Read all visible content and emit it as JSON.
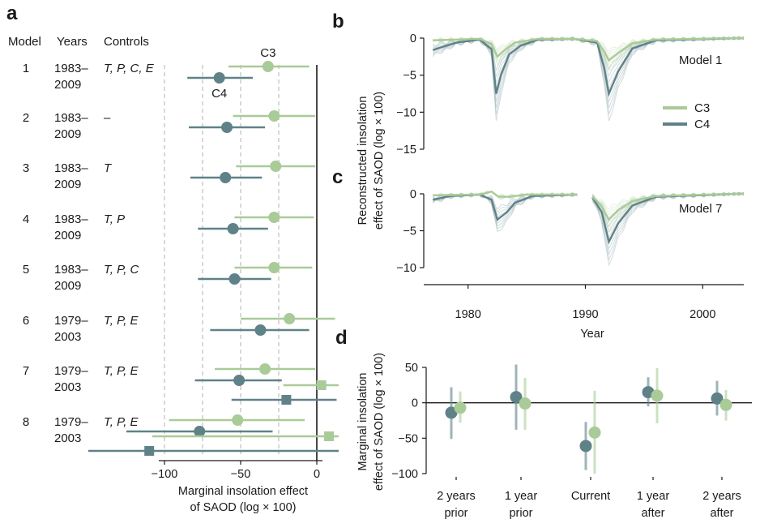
{
  "colors": {
    "c3": "#a9cb97",
    "c4": "#5f8288",
    "axis": "#1a1a1a",
    "dash": "#bdbdbd"
  },
  "chart_data": [
    {
      "panel": "a",
      "type": "forest",
      "headers": {
        "model": "Model",
        "years": "Years",
        "controls": "Controls"
      },
      "series_labels": {
        "c3": "C3",
        "c4": "C4"
      },
      "xlabel_line1": "Marginal insolation effect",
      "xlabel_line2": "of SAOD (log × 100)",
      "xticks": [
        -100,
        -50,
        0
      ],
      "tick_labels": [
        "−100",
        "−50",
        "0"
      ],
      "xlim": [
        -100,
        0
      ],
      "rows": [
        {
          "model": "1",
          "years": [
            "1983–",
            "2009"
          ],
          "controls": "T, P, C, E",
          "c3": {
            "est": -32,
            "lo": -58,
            "hi": -5
          },
          "c4": {
            "est": -64,
            "lo": -85,
            "hi": -42
          }
        },
        {
          "model": "2",
          "years": [
            "1983–",
            "2009"
          ],
          "controls": "–",
          "c3": {
            "est": -28,
            "lo": -55,
            "hi": -1
          },
          "c4": {
            "est": -59,
            "lo": -84,
            "hi": -34
          }
        },
        {
          "model": "3",
          "years": [
            "1983–",
            "2009"
          ],
          "controls": "T",
          "c3": {
            "est": -27,
            "lo": -53,
            "hi": -1
          },
          "c4": {
            "est": -60,
            "lo": -83,
            "hi": -36
          }
        },
        {
          "model": "4",
          "years": [
            "1983–",
            "2009"
          ],
          "controls": "T, P",
          "c3": {
            "est": -28,
            "lo": -54,
            "hi": -2
          },
          "c4": {
            "est": -55,
            "lo": -78,
            "hi": -32
          }
        },
        {
          "model": "5",
          "years": [
            "1983–",
            "2009"
          ],
          "controls": "T, P, C",
          "c3": {
            "est": -28,
            "lo": -54,
            "hi": -3
          },
          "c4": {
            "est": -54,
            "lo": -78,
            "hi": -30
          }
        },
        {
          "model": "6",
          "years": [
            "1979–",
            "2003"
          ],
          "controls": "T, P, E",
          "c3": {
            "est": -18,
            "lo": -50,
            "hi": 12
          },
          "c4": {
            "est": -37,
            "lo": -70,
            "hi": -5
          }
        },
        {
          "model": "7",
          "years": [
            "1979–",
            "2003"
          ],
          "controls": "T, P, E",
          "c3": {
            "est": -34,
            "lo": -67,
            "hi": -1
          },
          "c4": {
            "est": -51,
            "lo": -80,
            "hi": -23
          },
          "c3_sq": {
            "est": 3,
            "lo": -22,
            "hi": 15
          },
          "c4_sq": {
            "est": -20,
            "lo": -56,
            "hi": 13
          }
        },
        {
          "model": "8",
          "years": [
            "1979–",
            "2003"
          ],
          "controls": "T, P, E",
          "c3": {
            "est": -52,
            "lo": -97,
            "hi": -8
          },
          "c4": {
            "est": -77,
            "lo": -125,
            "hi": -29
          },
          "c3_sq": {
            "est": 8,
            "lo": -108,
            "hi": 15
          },
          "c4_sq": {
            "est": -110,
            "lo": -150,
            "hi": 15
          }
        }
      ]
    },
    {
      "panel": "b",
      "type": "line",
      "annotation": "Model 1",
      "ylabel_line1": "Reconstructed insolation",
      "ylabel_line2": "effect of SAOD (log × 100)",
      "yticks": [
        0,
        -5,
        -10,
        -15
      ],
      "ytick_labels": [
        "0",
        "−5",
        "−10",
        "−15"
      ],
      "ylim": [
        -15,
        0
      ],
      "xlim": [
        1976.5,
        2003.5
      ],
      "legend": [
        "C3",
        "C4"
      ],
      "legend_position": "right",
      "c3_mean": [
        [
          1977,
          -0.3
        ],
        [
          1981,
          -0.1
        ],
        [
          1982,
          -0.8
        ],
        [
          1982.5,
          -2.5
        ],
        [
          1983.2,
          -1.5
        ],
        [
          1984,
          -0.6
        ],
        [
          1986,
          -0.1
        ],
        [
          1989,
          -0.1
        ],
        [
          1991,
          -0.4
        ],
        [
          1991.6,
          -1.8
        ],
        [
          1992,
          -3.0
        ],
        [
          1992.8,
          -2.0
        ],
        [
          1994,
          -0.7
        ],
        [
          1996,
          -0.2
        ],
        [
          2003,
          0
        ]
      ],
      "c4_mean": [
        [
          1977,
          -1.6
        ],
        [
          1979,
          -0.6
        ],
        [
          1981,
          -0.2
        ],
        [
          1982,
          -1.5
        ],
        [
          1982.4,
          -7.5
        ],
        [
          1982.8,
          -5.0
        ],
        [
          1983.5,
          -2.2
        ],
        [
          1984.5,
          -1.0
        ],
        [
          1986,
          -0.2
        ],
        [
          1989,
          -0.1
        ],
        [
          1991,
          -0.6
        ],
        [
          1991.6,
          -4.0
        ],
        [
          1992,
          -7.5
        ],
        [
          1992.8,
          -4.5
        ],
        [
          1994,
          -1.4
        ],
        [
          1996,
          -0.3
        ],
        [
          2003,
          0
        ]
      ]
    },
    {
      "panel": "c",
      "type": "line",
      "annotation": "Model 7",
      "yticks": [
        0,
        -5,
        -10
      ],
      "ytick_labels": [
        "0",
        "−5",
        "−10"
      ],
      "ylim": [
        -10,
        0
      ],
      "xlim": [
        1976.5,
        2003.5
      ],
      "xticks": [
        1980,
        1990,
        2000
      ],
      "xtick_labels": [
        "1980",
        "1990",
        "2000"
      ],
      "xlabel": "Year",
      "gap": [
        1989.3,
        1990.5
      ],
      "c3_mean": [
        [
          1977,
          -0.2
        ],
        [
          1981,
          -0.1
        ],
        [
          1982,
          0.3
        ],
        [
          1982.6,
          -0.4
        ],
        [
          1983.5,
          -0.4
        ],
        [
          1985,
          -0.1
        ],
        [
          1989.2,
          -0.1
        ],
        [
          1990.6,
          -0.4
        ],
        [
          1991.3,
          -1.5
        ],
        [
          1992,
          -3.5
        ],
        [
          1992.8,
          -2.2
        ],
        [
          1994,
          -1.0
        ],
        [
          1996,
          -0.3
        ],
        [
          2003,
          0
        ]
      ],
      "c4_mean": [
        [
          1977,
          -0.8
        ],
        [
          1978.5,
          -0.3
        ],
        [
          1981,
          -0.1
        ],
        [
          1982,
          -0.8
        ],
        [
          1982.5,
          -3.5
        ],
        [
          1983.3,
          -2.5
        ],
        [
          1984,
          -1.2
        ],
        [
          1985.5,
          -0.3
        ],
        [
          1989.2,
          -0.1
        ],
        [
          1990.6,
          -0.5
        ],
        [
          1991.4,
          -2.5
        ],
        [
          1992,
          -6.5
        ],
        [
          1992.8,
          -4.0
        ],
        [
          1994,
          -1.6
        ],
        [
          1996,
          -0.4
        ],
        [
          2003,
          0
        ]
      ]
    },
    {
      "panel": "d",
      "type": "errorbar",
      "ylabel_line1": "Marginal insolation",
      "ylabel_line2": "effect of SAOD (log × 100)",
      "yticks": [
        50,
        0,
        -50,
        -100
      ],
      "ytick_labels": [
        "50",
        "0",
        "−50",
        "−100"
      ],
      "ylim": [
        -100,
        50
      ],
      "categories": [
        {
          "line1": "2 years",
          "line2": "prior"
        },
        {
          "line1": "1 year",
          "line2": "prior"
        },
        {
          "line1": "Current",
          "line2": ""
        },
        {
          "line1": "1 year",
          "line2": "after"
        },
        {
          "line1": "2 years",
          "line2": "after"
        }
      ],
      "c4": [
        {
          "est": -14,
          "lo": -51,
          "hi": 22
        },
        {
          "est": 8,
          "lo": -38,
          "hi": 54
        },
        {
          "est": -61,
          "lo": -95,
          "hi": -27
        },
        {
          "est": 15,
          "lo": -5,
          "hi": 36
        },
        {
          "est": 6,
          "lo": -18,
          "hi": 31
        }
      ],
      "c3": [
        {
          "est": -7,
          "lo": -28,
          "hi": 16
        },
        {
          "est": -1,
          "lo": -38,
          "hi": 35
        },
        {
          "est": -42,
          "lo": -102,
          "hi": 17
        },
        {
          "est": 10,
          "lo": -29,
          "hi": 49
        },
        {
          "est": -3,
          "lo": -25,
          "hi": 18
        }
      ]
    }
  ]
}
